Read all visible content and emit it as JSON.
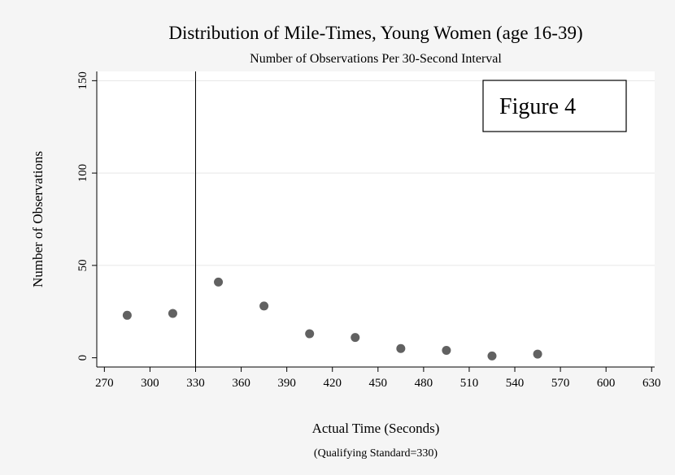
{
  "chart_data": {
    "type": "scatter",
    "title": "Distribution of Mile-Times, Young Women (age 16-39)",
    "subtitle": "Number of Observations Per 30-Second Interval",
    "xlabel": "Actual Time (Seconds)",
    "xnote": "(Qualifying Standard=330)",
    "ylabel": "Number of Observations",
    "annotation": "Figure 4",
    "xlim": [
      265,
      632
    ],
    "ylim": [
      -5,
      155
    ],
    "xticks": [
      270,
      300,
      330,
      360,
      390,
      420,
      450,
      480,
      510,
      540,
      570,
      600,
      630
    ],
    "yticks": [
      0,
      50,
      100,
      150
    ],
    "reference_line_x": 330,
    "grid": true,
    "marker_color": "#616161",
    "x": [
      285,
      315,
      345,
      375,
      405,
      435,
      465,
      495,
      525,
      555
    ],
    "y": [
      23,
      24,
      41,
      28,
      13,
      11,
      5,
      4,
      1,
      2
    ]
  }
}
